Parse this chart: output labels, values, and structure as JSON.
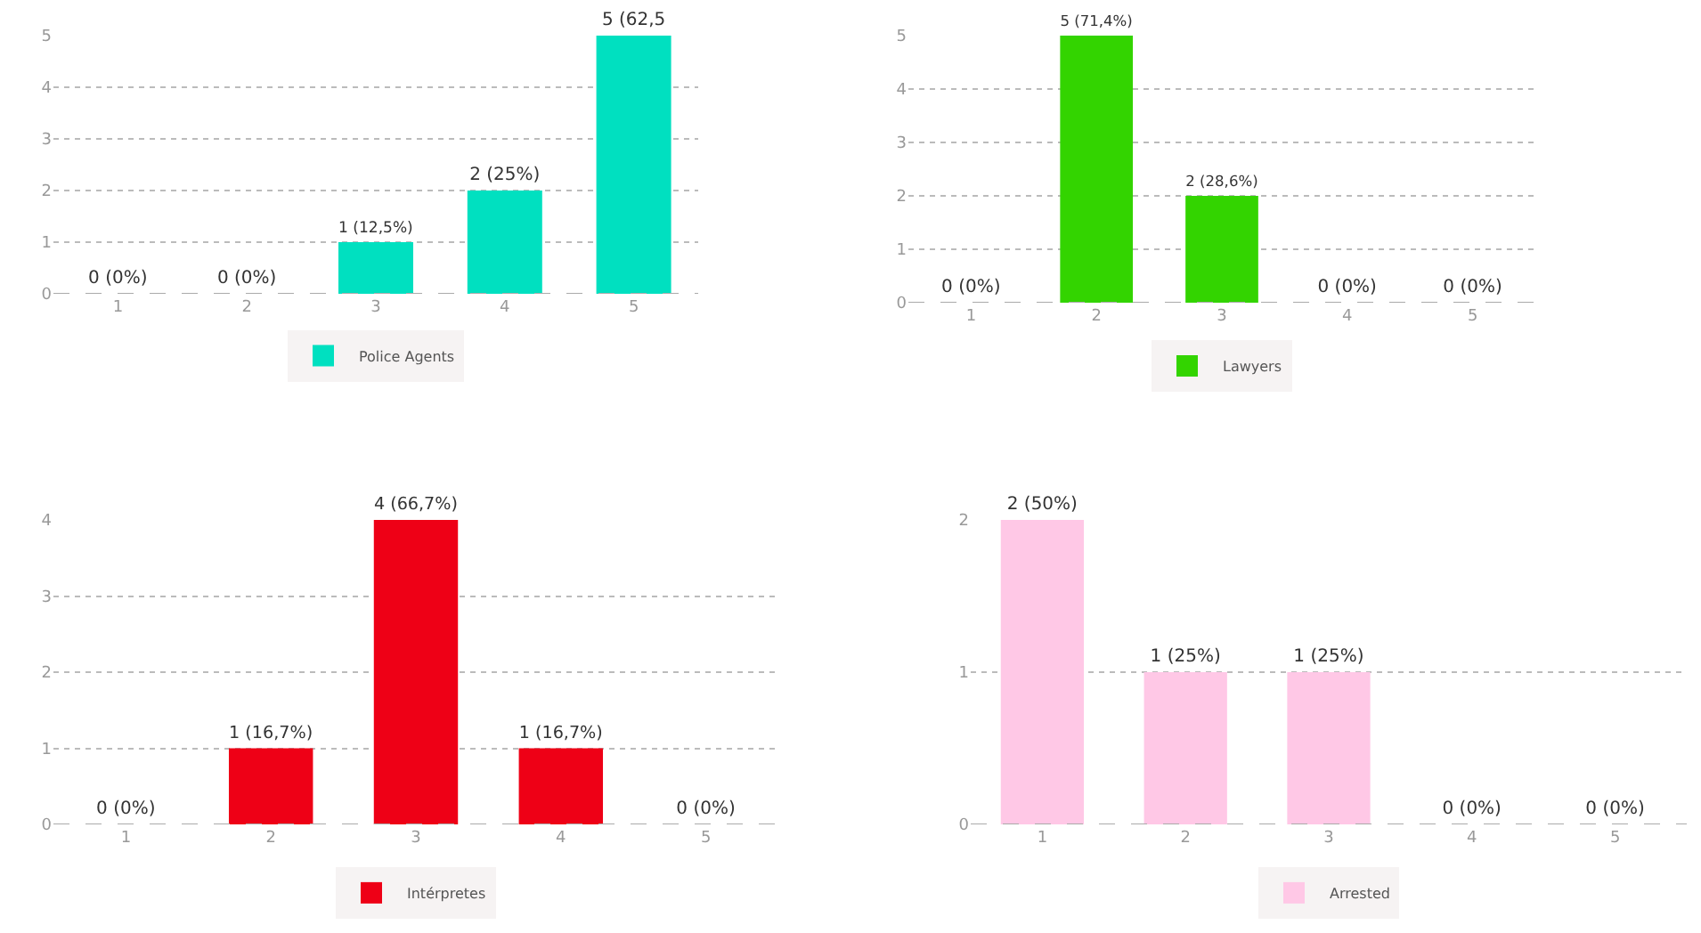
{
  "chart_data": [
    {
      "type": "bar",
      "categories": [
        "1",
        "2",
        "3",
        "4",
        "5"
      ],
      "series": [
        {
          "name": "Police Agents",
          "color": "#00e0c0",
          "values": [
            0,
            0,
            1,
            2,
            5
          ],
          "value_labels": [
            "0 (0%)",
            "0 (0%)",
            "1 (12,5%)",
            "2 (25%)",
            "5 (62,5"
          ]
        }
      ],
      "ylim": [
        0,
        5
      ],
      "yticks": [
        0,
        1,
        2,
        3,
        4,
        5
      ],
      "grid": "y",
      "legend": "bottom"
    },
    {
      "type": "bar",
      "categories": [
        "1",
        "2",
        "3",
        "4",
        "5"
      ],
      "series": [
        {
          "name": "Lawyers",
          "color": "#33d400",
          "values": [
            0,
            5,
            2,
            0,
            0
          ],
          "value_labels": [
            "0 (0%)",
            "5 (71,4%)",
            "2 (28,6%)",
            "0 (0%)",
            "0 (0%)"
          ]
        }
      ],
      "ylim": [
        0,
        5
      ],
      "yticks": [
        0,
        1,
        2,
        3,
        4,
        5
      ],
      "grid": "y",
      "legend": "bottom"
    },
    {
      "type": "bar",
      "categories": [
        "1",
        "2",
        "3",
        "4",
        "5"
      ],
      "series": [
        {
          "name": "Intérpretes",
          "color": "#ee0016",
          "values": [
            0,
            1,
            4,
            1,
            0
          ],
          "value_labels": [
            "0 (0%)",
            "1 (16,7%)",
            "4 (66,7%)",
            "1 (16,7%)",
            "0 (0%)"
          ]
        }
      ],
      "ylim": [
        0,
        4
      ],
      "yticks": [
        0,
        1,
        2,
        3,
        4
      ],
      "grid": "y",
      "legend": "bottom"
    },
    {
      "type": "bar",
      "categories": [
        "1",
        "2",
        "3",
        "4",
        "5"
      ],
      "series": [
        {
          "name": "Arrested",
          "color": "#ffc8e6",
          "values": [
            2,
            1,
            1,
            0,
            0
          ],
          "value_labels": [
            "2 (50%)",
            "1 (25%)",
            "1 (25%)",
            "0 (0%)",
            "0 (0%)"
          ]
        }
      ],
      "ylim": [
        0,
        2
      ],
      "yticks": [
        0,
        1,
        2
      ],
      "grid": "y",
      "legend": "bottom"
    }
  ]
}
